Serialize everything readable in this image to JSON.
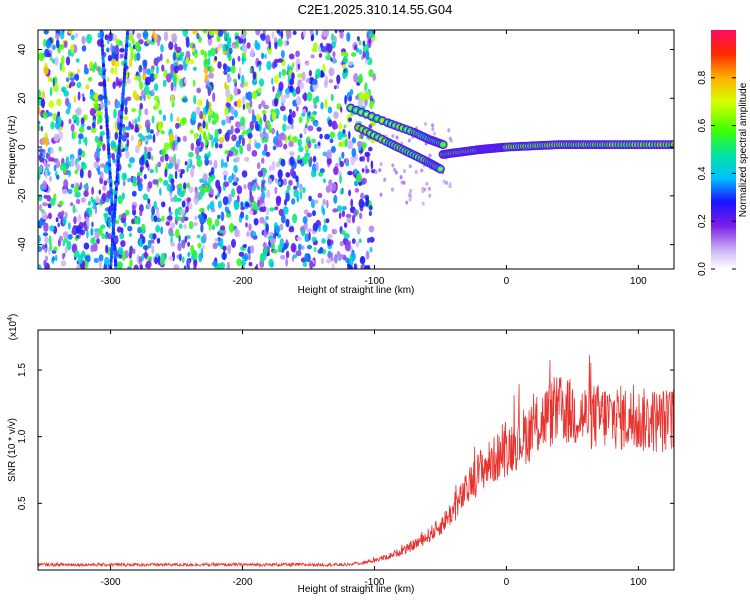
{
  "title": "C2E1.2025.310.14.55.G04",
  "chart_data": [
    {
      "type": "heatmap",
      "xlabel": "Height of straight line (km)",
      "ylabel": "Frequency (Hz)",
      "xlim": [
        -355,
        127
      ],
      "ylim": [
        -50,
        48
      ],
      "x_ticks": [
        -300,
        -200,
        -100,
        0,
        100
      ],
      "y_ticks": [
        -40,
        -20,
        0,
        20,
        40
      ],
      "colorbar": {
        "label": "Normalized spectral amplitude",
        "range": [
          0,
          1
        ],
        "ticks": [
          0.0,
          0.2,
          0.4,
          0.6,
          0.8
        ],
        "tick_labels": [
          "0.0",
          "0.2",
          "0.4",
          "0.6",
          "0.8"
        ]
      },
      "features": {
        "noise_region_x": [
          -355,
          -100
        ],
        "steep_lines": [
          {
            "x": [
              -307,
              -296
            ],
            "y": [
              48,
              -50
            ]
          },
          {
            "x": [
              -287,
              -300
            ],
            "y": [
              48,
              -50
            ]
          }
        ],
        "signal_branch_upper": {
          "x": [
            -118,
            -90,
            -70,
            -58,
            -48
          ],
          "y": [
            16,
            10,
            6,
            3,
            1
          ]
        },
        "signal_branch_lower": {
          "x": [
            -112,
            -90,
            -75,
            -60,
            -50
          ],
          "y": [
            8,
            2,
            -2,
            -6,
            -9
          ]
        },
        "carrier": {
          "x": [
            -48,
            -20,
            0,
            40,
            80,
            127
          ],
          "y": [
            -3,
            -1,
            0,
            1,
            1,
            1
          ]
        }
      }
    },
    {
      "type": "line",
      "xlabel": "Height of straight line (km)",
      "ylabel": "SNR (10 * v/v)",
      "y_multiplier_label": "(x10",
      "y_multiplier_exp": "4",
      "y_multiplier_close": ")",
      "xlim": [
        -355,
        127
      ],
      "ylim": [
        0,
        1.8
      ],
      "x_ticks": [
        -300,
        -200,
        -100,
        0,
        100
      ],
      "y_ticks": [
        0.5,
        1.0,
        1.5
      ],
      "y_tick_labels": [
        "0.5",
        "1.0",
        "1.5"
      ],
      "series": [
        {
          "color": "#e8322e",
          "envelope_x": [
            -355,
            -120,
            -105,
            -90,
            -75,
            -60,
            -50,
            -40,
            -30,
            -20,
            -10,
            0,
            10,
            20,
            30,
            40,
            50,
            60,
            80,
            100,
            127
          ],
          "envelope_y": [
            0.04,
            0.04,
            0.06,
            0.1,
            0.16,
            0.25,
            0.33,
            0.45,
            0.6,
            0.75,
            0.82,
            0.9,
            0.98,
            1.05,
            1.15,
            1.2,
            1.18,
            1.15,
            1.15,
            1.12,
            1.12
          ]
        }
      ]
    }
  ]
}
